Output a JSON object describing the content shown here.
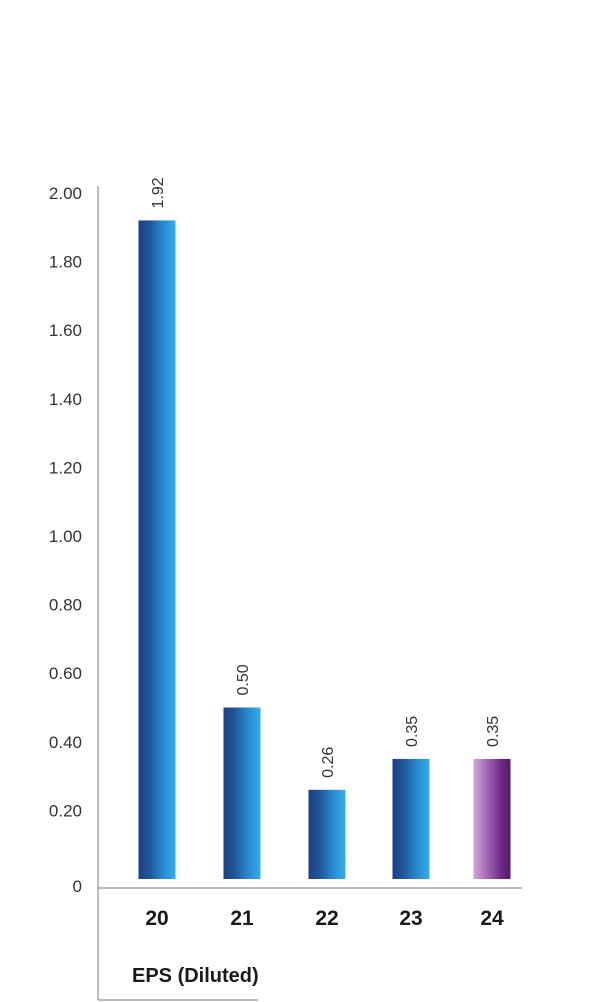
{
  "chart_data": {
    "type": "bar",
    "title": "EPS (Diluted)",
    "categories": [
      "20",
      "21",
      "22",
      "23",
      "24"
    ],
    "values": [
      1.92,
      0.5,
      0.26,
      0.35,
      0.35
    ],
    "value_labels": [
      "1.92",
      "0.50",
      "0.26",
      "0.35",
      "0.35"
    ],
    "highlight_index": 4,
    "ylim": [
      0,
      2.0
    ],
    "yticks": [
      0,
      0.2,
      0.4,
      0.6,
      0.8,
      1.0,
      1.2,
      1.4,
      1.6,
      1.8,
      2.0
    ],
    "ytick_labels": [
      "0",
      "0.20",
      "0.40",
      "0.60",
      "0.80",
      "1.00",
      "1.20",
      "1.40",
      "1.60",
      "1.80",
      "2.00"
    ],
    "grid": false,
    "colors": {
      "bar_dark": "#1f4e8f",
      "bar_light": "#2fa6e4",
      "highlight_light": "#c79ed0",
      "highlight_dark": "#5c1f6e",
      "axis": "#777777"
    }
  }
}
